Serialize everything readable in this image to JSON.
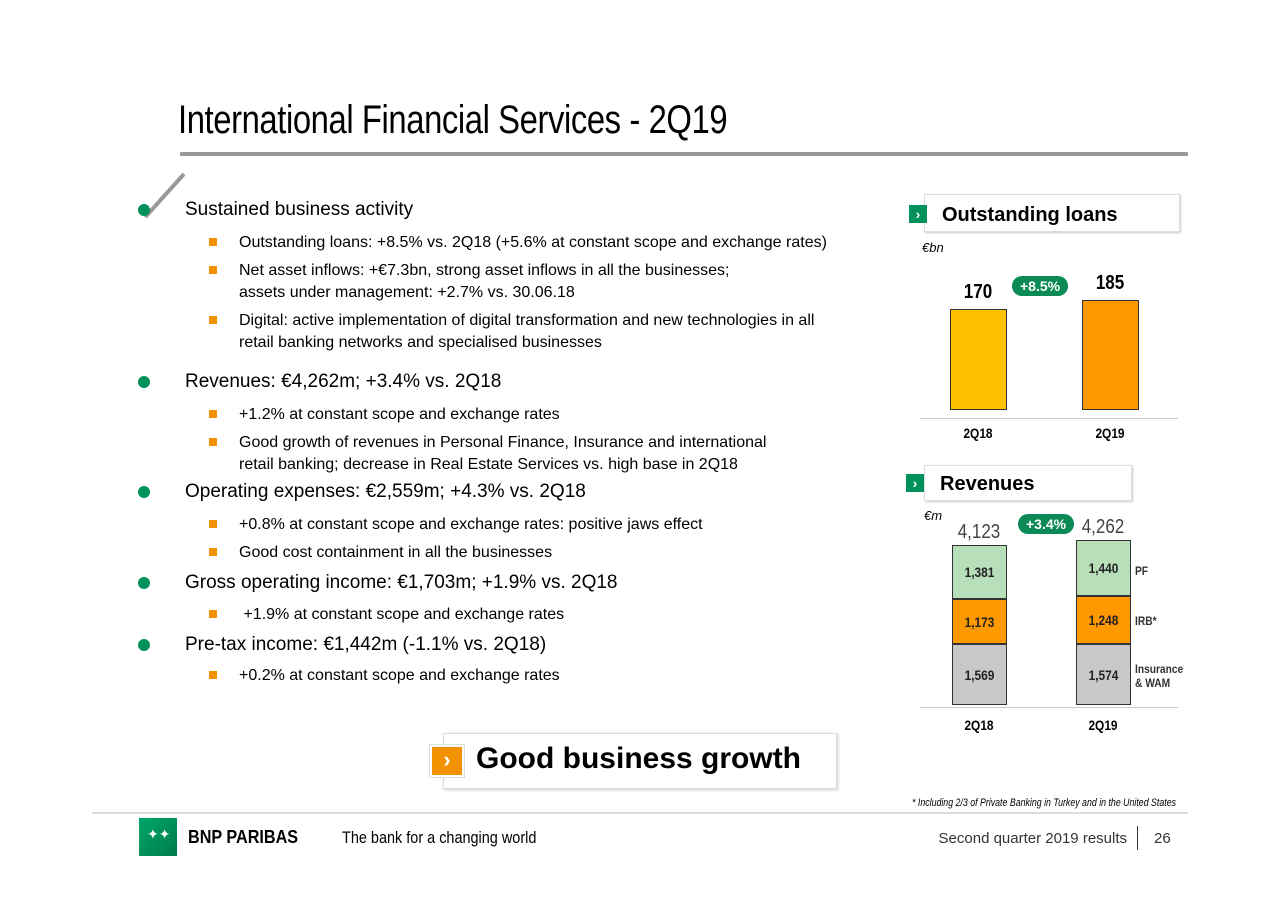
{
  "title": "International Financial Services - 2Q19",
  "bullets": [
    {
      "text": "Sustained business activity",
      "subs": [
        "Outstanding loans: +8.5% vs. 2Q18 (+5.6% at constant scope and exchange rates)",
        "Net asset inflows: +€7.3bn, strong asset inflows in all the businesses;\nassets under management: +2.7% vs. 30.06.18",
        "Digital: active implementation of digital transformation and new technologies in all\nretail banking networks and specialised businesses"
      ]
    },
    {
      "text": "Revenues: €4,262m; +3.4% vs. 2Q18",
      "subs": [
        "+1.2% at constant scope and exchange rates",
        "Good growth of revenues in Personal Finance, Insurance and international\nretail banking; decrease in Real Estate Services vs. high base in 2Q18"
      ]
    },
    {
      "text": "Operating expenses: €2,559m; +4.3% vs. 2Q18",
      "subs": [
        "+0.8% at constant scope and exchange rates: positive jaws effect",
        "Good cost containment in all the businesses"
      ]
    },
    {
      "text": "Gross operating income: €1,703m; +1.9% vs. 2Q18",
      "subs": [
        " +1.9% at constant scope and exchange rates"
      ]
    },
    {
      "text": "Pre-tax income: €1,442m (-1.1% vs. 2Q18)",
      "subs": [
        "+0.2% at constant scope and exchange rates"
      ]
    }
  ],
  "conclusion": "Good business growth",
  "footnote": "* Including 2/3 of Private Banking in Turkey and in the United States",
  "footer": {
    "brand": "BNP PARIBAS",
    "tagline": "The bank for a changing world",
    "report": "Second quarter 2019 results",
    "page": "26"
  },
  "colors": {
    "green": "#00915a",
    "orange": "#f39200",
    "yellow": "#ffc000",
    "light_green": "#b7dfb9",
    "gray": "#c8c8c8"
  },
  "chart_data": [
    {
      "type": "bar",
      "title": "Outstanding loans",
      "unit": "€bn",
      "categories": [
        "2Q18",
        "2Q19"
      ],
      "values": [
        170,
        185
      ],
      "labels": [
        "170",
        "185"
      ],
      "growth": "+8.5%",
      "colors": [
        "#ffc000",
        "#ff9900"
      ]
    },
    {
      "type": "bar",
      "stacked": true,
      "title": "Revenues",
      "unit": "€m",
      "categories": [
        "2Q18",
        "2Q19"
      ],
      "totals": [
        "4,123",
        "4,262"
      ],
      "growth": "+3.4%",
      "series": [
        {
          "name": "Insurance\n& WAM",
          "values": [
            1569,
            1574
          ],
          "labels": [
            "1,569",
            "1,574"
          ],
          "color": "#c8c8c8"
        },
        {
          "name": "IRB*",
          "values": [
            1173,
            1248
          ],
          "labels": [
            "1,173",
            "1,248"
          ],
          "color": "#ff9900"
        },
        {
          "name": "PF",
          "values": [
            1381,
            1440
          ],
          "labels": [
            "1,381",
            "1,440"
          ],
          "color": "#b7dfb9"
        }
      ]
    }
  ]
}
